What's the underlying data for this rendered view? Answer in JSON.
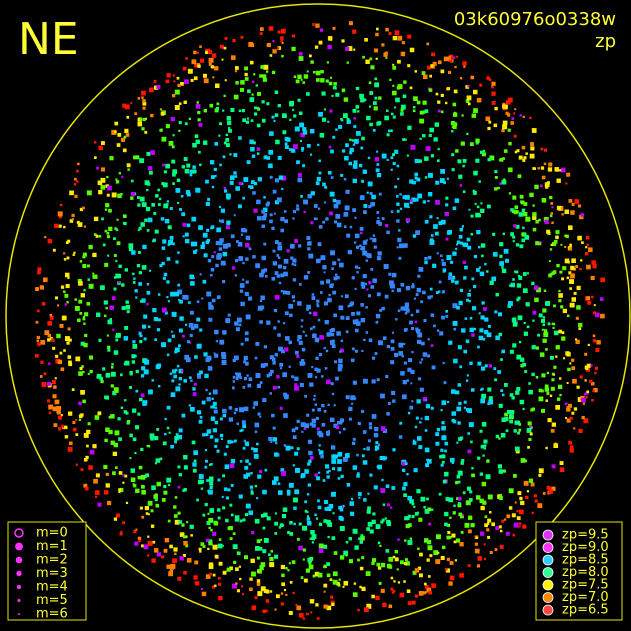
{
  "header": {
    "direction": "NE",
    "frame_id": "03k60976o0338w",
    "mode": "zp"
  },
  "legend_magnitude": [
    "m=0",
    "m=1",
    "m=2",
    "m=3",
    "m=4",
    "m=5",
    "m=6"
  ],
  "legend_zp": [
    "zp=9.5",
    "zp=9.0",
    "zp=8.5",
    "zp=8.0",
    "zp=7.5",
    "zp=7.0",
    "zp=6.5"
  ]
}
